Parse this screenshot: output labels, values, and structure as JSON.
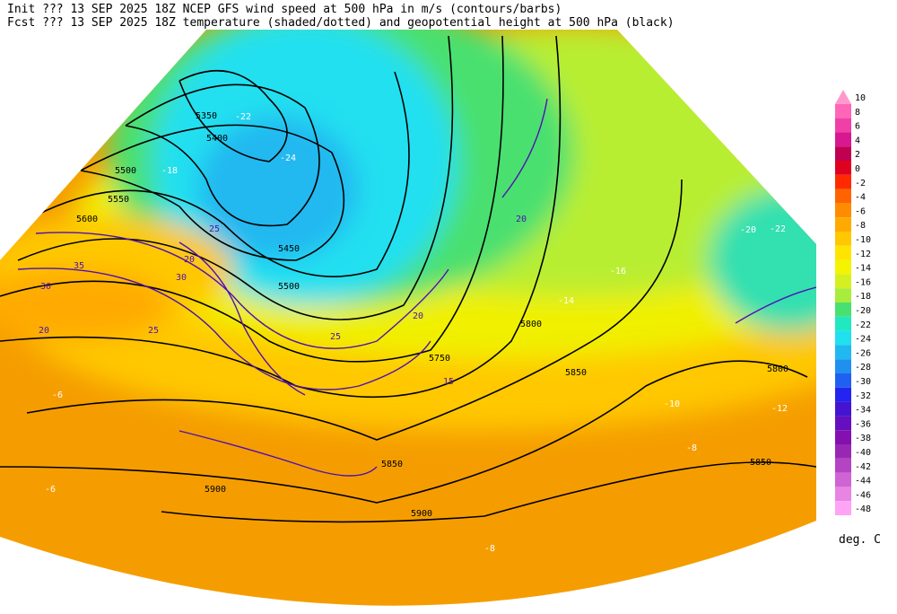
{
  "header": {
    "line1": "Init  ??? 13 SEP 2025 18Z  NCEP GFS wind speed at 500 hPa in m/s (contours/barbs)",
    "line2": "Fcst ??? 13 SEP 2025 18Z  temperature (shaded/dotted) and geopotential height at 500 hPa (black)"
  },
  "colorbar": {
    "labels": [
      "10",
      "8",
      "6",
      "4",
      "2",
      "0",
      "-2",
      "-4",
      "-6",
      "-8",
      "-10",
      "-12",
      "-14",
      "-16",
      "-18",
      "-20",
      "-22",
      "-24",
      "-26",
      "-28",
      "-30",
      "-32",
      "-34",
      "-36",
      "-38",
      "-40",
      "-42",
      "-44",
      "-46",
      "-48"
    ],
    "colors": [
      "#ff99cc",
      "#ff66b8",
      "#f040a8",
      "#d81890",
      "#c00050",
      "#e00020",
      "#ff2a00",
      "#ff6400",
      "#ff8c00",
      "#ffaa00",
      "#ffc800",
      "#ffe400",
      "#f4f400",
      "#d4f020",
      "#a8ec3c",
      "#48e070",
      "#20e8c0",
      "#20e0f0",
      "#20b8f0",
      "#2090f0",
      "#2060f0",
      "#2424f0",
      "#4414d0",
      "#6410c0",
      "#8410b0",
      "#9828b4",
      "#b444c4",
      "#d064d4",
      "#e884e4",
      "#ffa4f4"
    ],
    "unit": "deg. C"
  },
  "map_labels": {
    "heights": [
      "5350",
      "5400",
      "5450",
      "5500",
      "5550",
      "5600",
      "5500",
      "5750",
      "5800",
      "5850",
      "5850",
      "5900",
      "5900",
      "5800",
      "5850"
    ],
    "temperatures": [
      "-22",
      "-18",
      "-24",
      "-16",
      "-14",
      "-12",
      "-10",
      "-8",
      "-6",
      "-6",
      "-8",
      "-20",
      "-22"
    ],
    "winds": [
      "25",
      "20",
      "30",
      "35",
      "30",
      "20",
      "25",
      "20",
      "25",
      "20",
      "15"
    ]
  }
}
